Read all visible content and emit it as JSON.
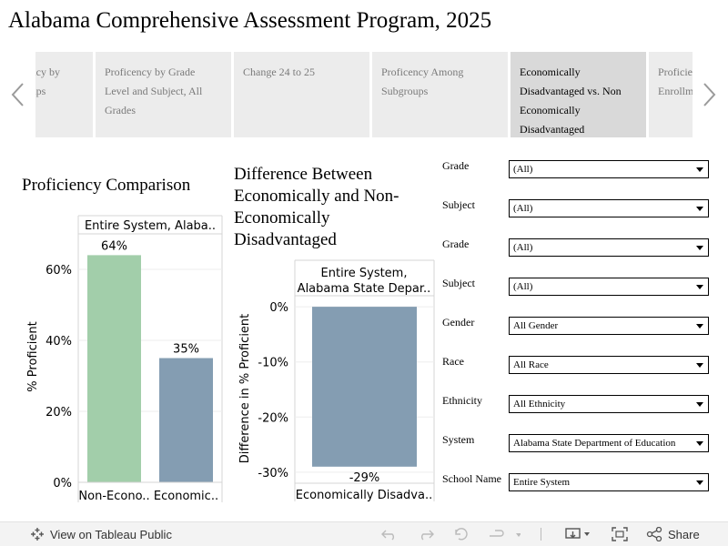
{
  "title": "Alabama Comprehensive Assessment Program, 2025",
  "tabs": [
    {
      "label": "Proficency by Subgroups"
    },
    {
      "label": "Proficency by Grade Level and Subject, All Grades"
    },
    {
      "label": "Change 24 to 25"
    },
    {
      "label": "Proficency Among Subgroups"
    },
    {
      "label": "Economically Disadvantaged vs. Non Economically Disadvantaged"
    },
    {
      "label": "Proficiency of Poverty Enrollment"
    }
  ],
  "left_chart_heading": "Proficiency Comparison",
  "mid_chart_heading": "Difference Between Economically and Non-Economically Disadvantaged",
  "chart_data": [
    {
      "type": "bar",
      "title": "Proficiency Comparison",
      "panel_header": "Entire System, Alaba..",
      "ylabel": "% Proficient",
      "categories": [
        "Non-Econo..",
        "Economic.."
      ],
      "values": [
        64,
        35
      ],
      "value_labels": [
        "64%",
        "35%"
      ],
      "colors": [
        "#a2ceaa",
        "#849db2"
      ],
      "ylim": [
        0,
        70
      ],
      "yticks": [
        0,
        20,
        40,
        60
      ],
      "ytick_labels": [
        "0%",
        "20%",
        "40%",
        "60%"
      ],
      "grid": true
    },
    {
      "type": "bar",
      "title": "Difference Between Economically and Non-Economically Disadvantaged",
      "panel_header_lines": [
        "Entire System,",
        "Alabama State Depar.."
      ],
      "ylabel": "Difference in % Proficient",
      "categories": [
        "Economically Disadva.."
      ],
      "values": [
        -29
      ],
      "value_labels": [
        "-29%"
      ],
      "colors": [
        "#849db2"
      ],
      "ylim": [
        -32,
        2
      ],
      "yticks": [
        0,
        -10,
        -20,
        -30
      ],
      "ytick_labels": [
        "0%",
        "-10%",
        "-20%",
        "-30%"
      ],
      "grid": true
    }
  ],
  "filters": [
    {
      "label": "Grade",
      "value": "(All)"
    },
    {
      "label": "Subject",
      "value": "(All)"
    },
    {
      "label": "Grade",
      "value": "(All)"
    },
    {
      "label": "Subject",
      "value": "(All)"
    },
    {
      "label": "Gender",
      "value": "All Gender"
    },
    {
      "label": "Race",
      "value": "All Race"
    },
    {
      "label": "Ethnicity",
      "value": "All Ethnicity"
    },
    {
      "label": "System",
      "value": "Alabama State Department of Education"
    },
    {
      "label": "School Name",
      "value": "Entire System"
    }
  ],
  "footer": {
    "view_label": "View on Tableau Public",
    "share_label": "Share"
  }
}
